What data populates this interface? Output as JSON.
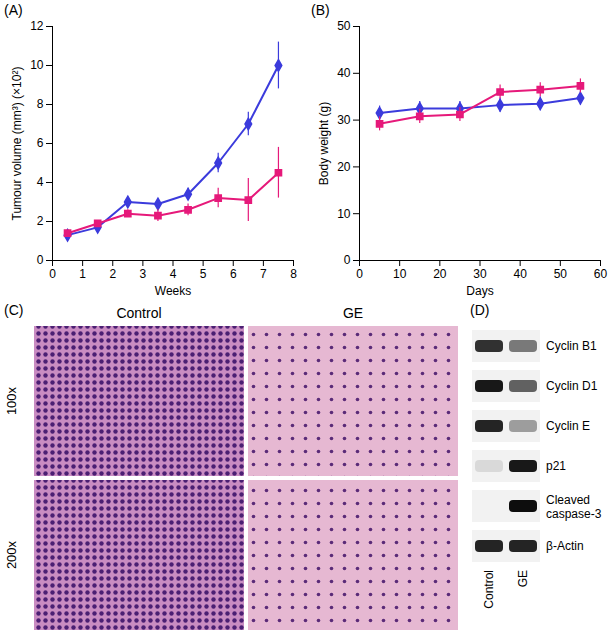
{
  "chart_data": [
    {
      "type": "line",
      "panel": "(A)",
      "x_label": "Weeks",
      "y_label": "Tumour volume (mm³) (×10²)",
      "xlim": [
        0,
        8
      ],
      "xticks": [
        0,
        1,
        2,
        3,
        4,
        5,
        6,
        7,
        8
      ],
      "ylim": [
        0,
        12
      ],
      "yticks": [
        0,
        2,
        4,
        6,
        8,
        10,
        12
      ],
      "x": [
        0.5,
        1.5,
        2.5,
        3.5,
        4.5,
        5.5,
        6.5,
        7.5
      ],
      "series": [
        {
          "color": "#3b3bdc",
          "marker": "diamond",
          "values": [
            1.3,
            1.7,
            3.0,
            2.9,
            3.4,
            5.0,
            7.0,
            10.0
          ],
          "errors": [
            0.1,
            0.1,
            0.2,
            0.2,
            0.3,
            0.5,
            0.6,
            1.2
          ]
        },
        {
          "color": "#e6197a",
          "marker": "square",
          "values": [
            1.4,
            1.9,
            2.4,
            2.3,
            2.6,
            3.2,
            3.1,
            4.5
          ],
          "errors": [
            0.1,
            0.1,
            0.2,
            0.3,
            0.3,
            0.5,
            1.1,
            1.3
          ]
        }
      ]
    },
    {
      "type": "line",
      "panel": "(B)",
      "x_label": "Days",
      "y_label": "Body weight (g)",
      "xlim": [
        0,
        60
      ],
      "xticks": [
        0,
        10,
        20,
        30,
        40,
        50,
        60
      ],
      "ylim": [
        0,
        50
      ],
      "yticks": [
        0,
        10,
        20,
        30,
        40,
        50
      ],
      "x": [
        5,
        15,
        25,
        35,
        45,
        55
      ],
      "series": [
        {
          "color": "#3b3bdc",
          "marker": "diamond",
          "values": [
            31.5,
            32.5,
            32.5,
            33.2,
            33.5,
            34.7
          ],
          "errors": [
            1.5,
            1.5,
            1.5,
            1.5,
            1.5,
            1.5
          ]
        },
        {
          "color": "#e6197a",
          "marker": "square",
          "values": [
            29.2,
            30.8,
            31.2,
            36.0,
            36.5,
            37.3
          ],
          "errors": [
            1.5,
            1.5,
            1.5,
            1.5,
            1.5,
            1.5
          ]
        }
      ]
    }
  ],
  "panels": {
    "C": {
      "label": "(C)",
      "columns": [
        "Control",
        "GE"
      ],
      "rows": [
        "100x",
        "200x"
      ]
    },
    "D": {
      "label": "(D)",
      "lanes": [
        "Control",
        "GE"
      ],
      "bands": [
        {
          "name": "Cyclin B1",
          "intensity": [
            0.8,
            0.5
          ]
        },
        {
          "name": "Cyclin D1",
          "intensity": [
            0.9,
            0.6
          ]
        },
        {
          "name": "Cyclin E",
          "intensity": [
            0.85,
            0.35
          ]
        },
        {
          "name": "p21",
          "intensity": [
            0.1,
            0.9
          ]
        },
        {
          "name": "Cleaved caspase-3",
          "intensity": [
            0.0,
            0.95
          ]
        },
        {
          "name": "β-Actin",
          "intensity": [
            0.85,
            0.85
          ]
        }
      ]
    }
  }
}
